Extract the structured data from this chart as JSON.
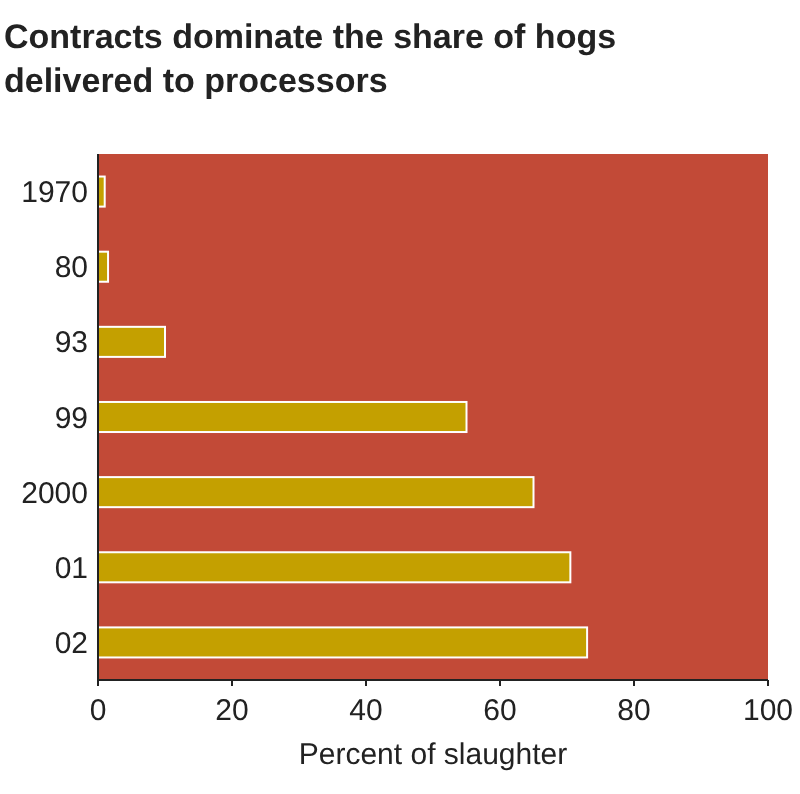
{
  "chart_data": {
    "type": "bar",
    "orientation": "horizontal",
    "title": "Contracts dominate the share of hogs delivered to processors",
    "xlabel": "Percent of slaughter",
    "categories": [
      "1970",
      "80",
      "93",
      "99",
      "2000",
      "01",
      "02"
    ],
    "values": [
      1,
      1.5,
      10,
      55,
      65,
      70.5,
      73
    ],
    "color": "#c4a000",
    "xlim": [
      0,
      100
    ],
    "xticks": [
      0,
      20,
      40,
      60,
      80,
      100
    ],
    "grid": false
  }
}
